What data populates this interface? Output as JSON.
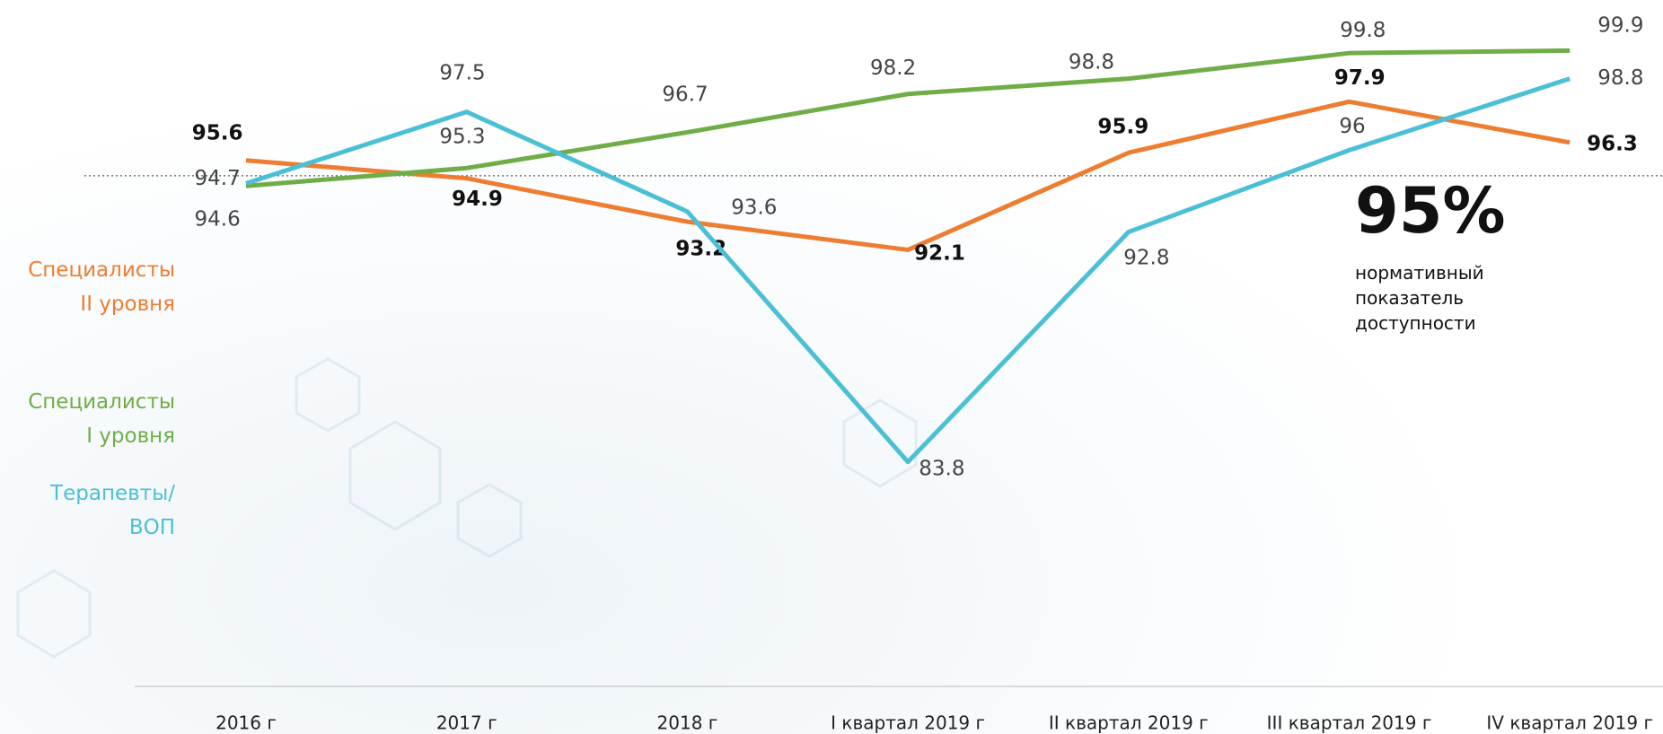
{
  "chart_data": {
    "type": "line",
    "categories": [
      "2016 г",
      "2017 г",
      "2018 г",
      "I квартал 2019 г",
      "II квартал 2019 г",
      "III квартал 2019 г",
      "IV квартал 2019 г"
    ],
    "series": [
      {
        "name": "Специалисты\nII уровня",
        "color": "#ed7d31",
        "values": [
          95.6,
          94.9,
          93.2,
          92.1,
          95.9,
          97.9,
          96.3
        ]
      },
      {
        "name": "Специалисты\nI уровня",
        "color": "#70ad47",
        "values": [
          94.6,
          95.3,
          96.7,
          98.2,
          98.8,
          99.8,
          99.9
        ]
      },
      {
        "name": "Терапевты/\nВОП",
        "color": "#4bbfd6",
        "values": [
          94.7,
          97.5,
          93.6,
          83.8,
          92.8,
          96,
          98.8
        ]
      }
    ],
    "ylim": [
      80,
      101
    ],
    "reference": {
      "value": 95,
      "label": "95%",
      "text": "нормативный показатель доступности"
    }
  }
}
